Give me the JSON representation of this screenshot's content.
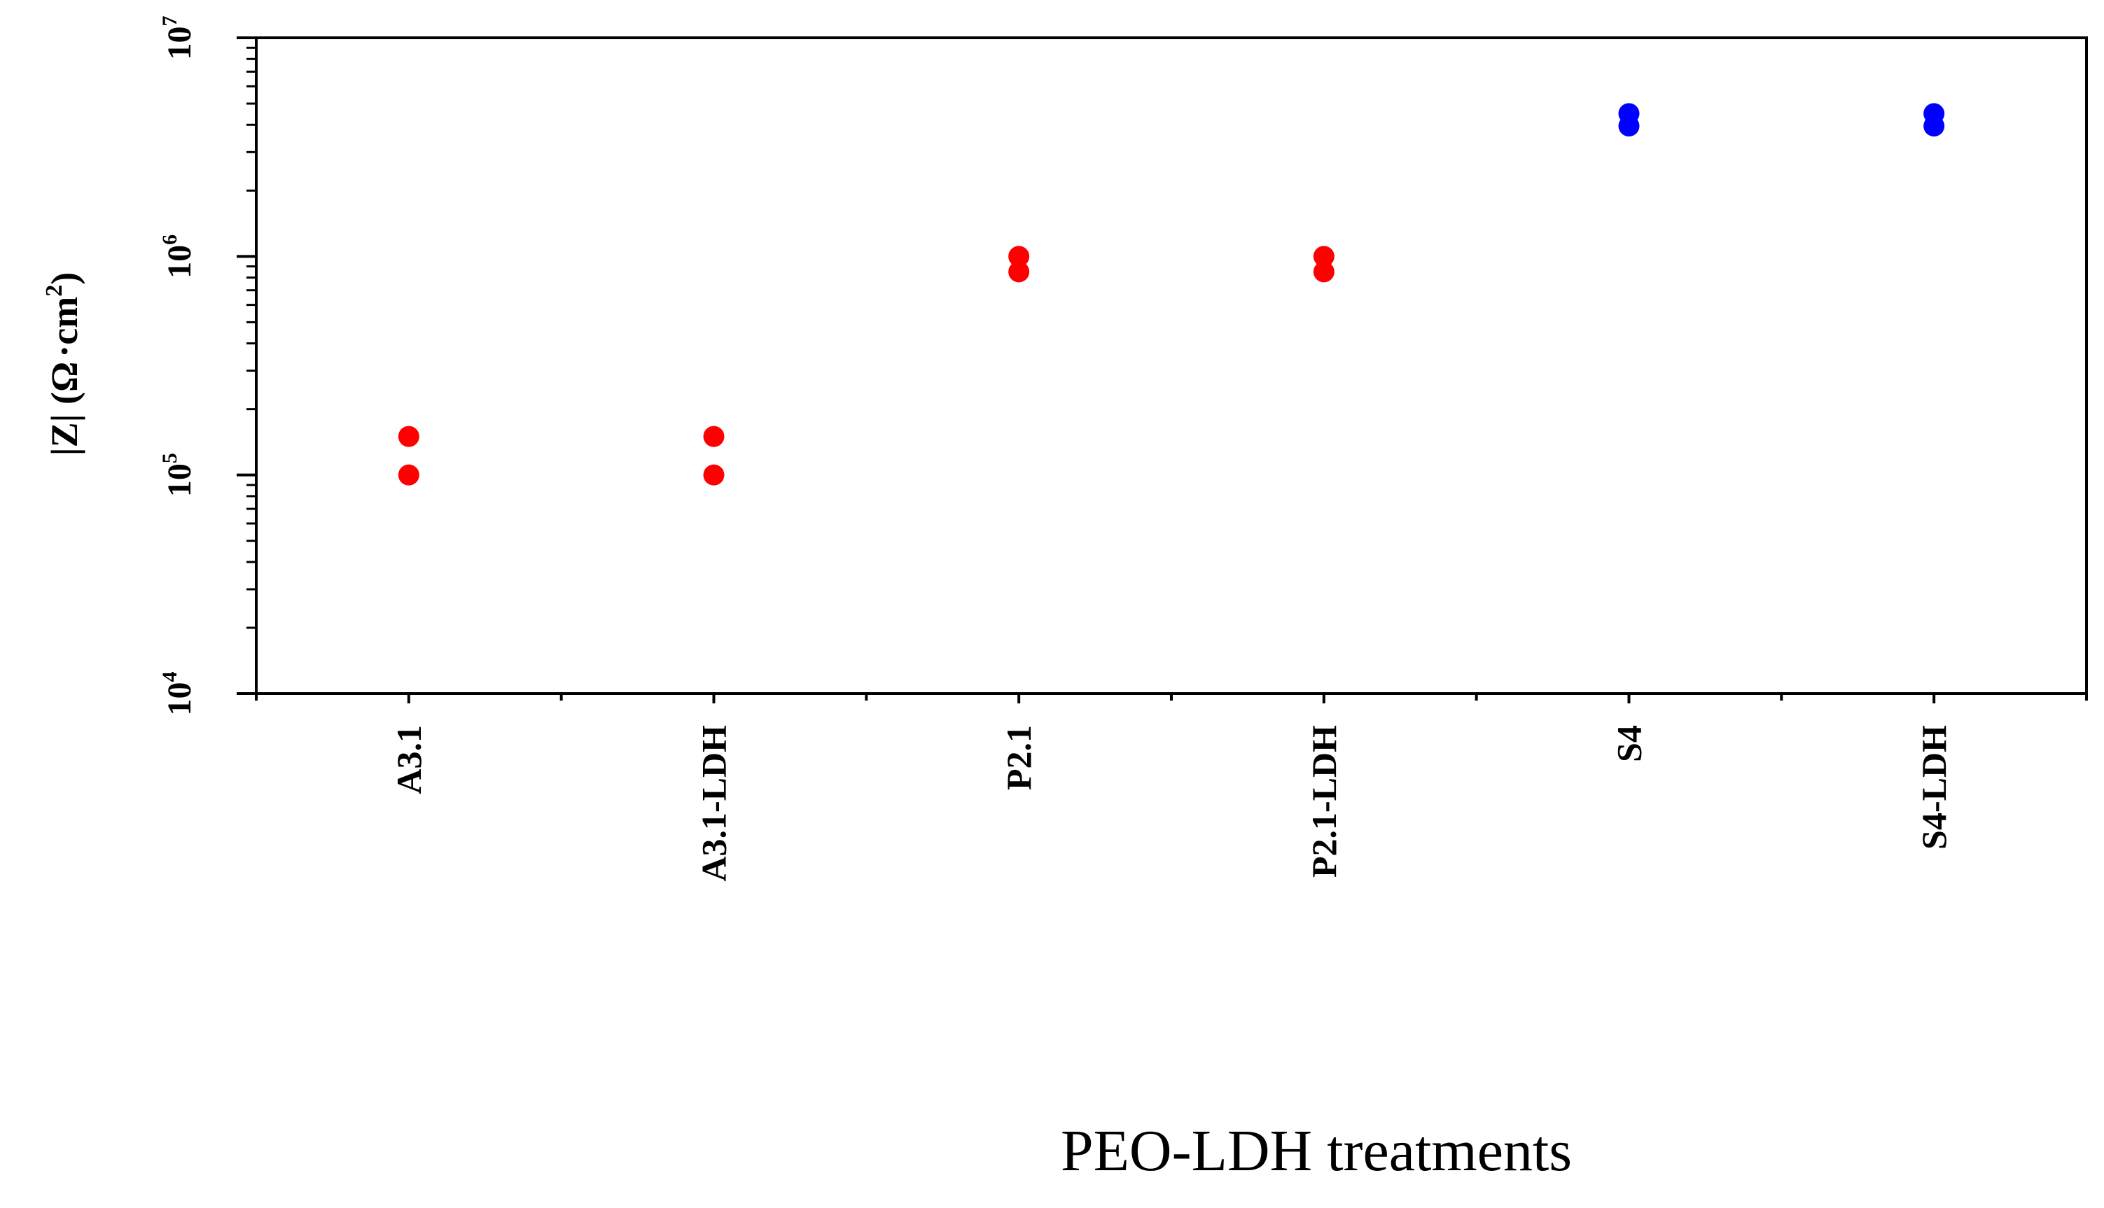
{
  "chart_data": {
    "type": "scatter",
    "title": "",
    "xlabel": "PEO-LDH treatments",
    "ylabel": {
      "prefix": "|Z| (",
      "omega": "Ω",
      "dot": "·",
      "unit": "cm",
      "power": "2",
      "suffix": ")"
    },
    "yscale": "log",
    "ylim": [
      10000,
      10000000
    ],
    "yticks": [
      {
        "base": "10",
        "exp": "4",
        "value": 10000
      },
      {
        "base": "10",
        "exp": "5",
        "value": 100000
      },
      {
        "base": "10",
        "exp": "6",
        "value": 1000000
      },
      {
        "base": "10",
        "exp": "7",
        "value": 10000000
      }
    ],
    "categories": [
      "A3.1",
      "A3.1-LDH",
      "P2.1",
      "P2.1-LDH",
      "S4",
      "S4-LDH"
    ],
    "points": [
      {
        "category": "A3.1",
        "values": [
          150000,
          100000
        ],
        "color": "#ff0000"
      },
      {
        "category": "A3.1-LDH",
        "values": [
          150000,
          100000
        ],
        "color": "#ff0000"
      },
      {
        "category": "P2.1",
        "values": [
          1000000,
          850000
        ],
        "color": "#ff0000"
      },
      {
        "category": "P2.1-LDH",
        "values": [
          1000000,
          850000
        ],
        "color": "#ff0000"
      },
      {
        "category": "S4",
        "values": [
          4500000,
          3950000
        ],
        "color": "#0000ff"
      },
      {
        "category": "S4-LDH",
        "values": [
          4500000,
          3950000
        ],
        "color": "#0000ff"
      }
    ],
    "legend": "none",
    "grid": false
  }
}
